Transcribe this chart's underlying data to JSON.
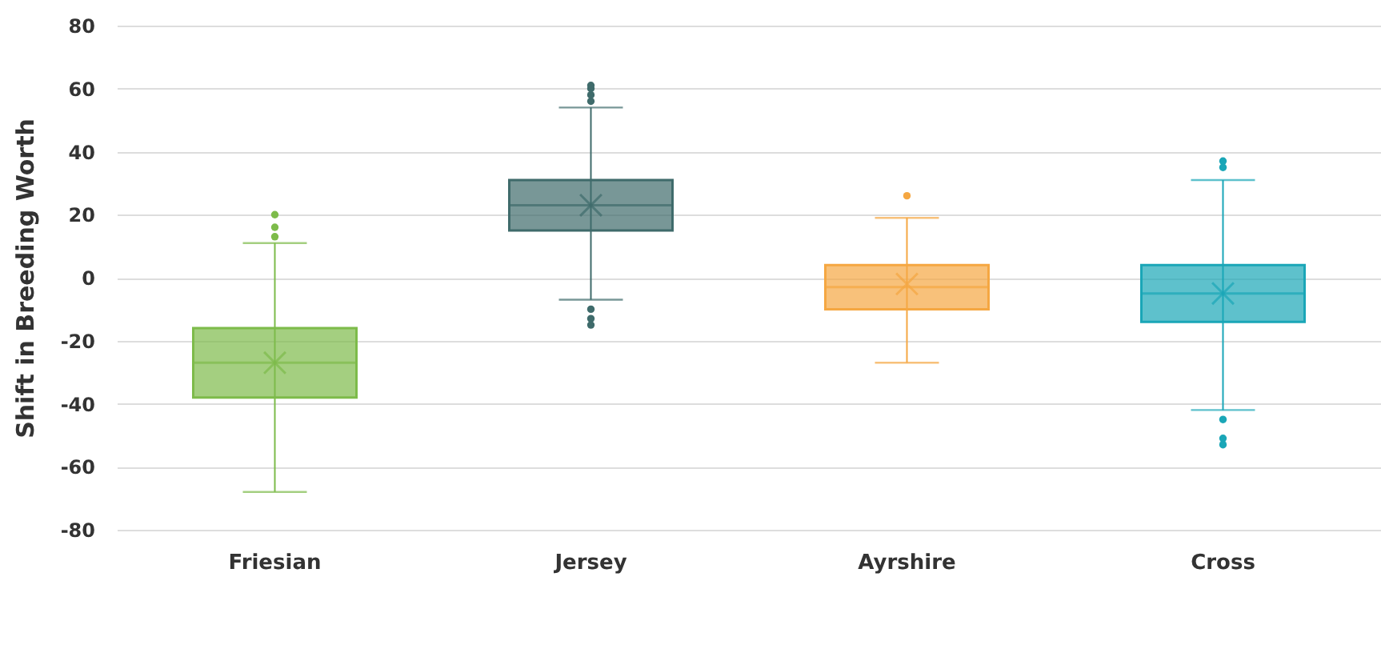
{
  "chart_data": {
    "type": "box",
    "ylabel": "Shift in Breeding Worth",
    "categories": [
      "Friesian",
      "Jersey",
      "Ayrshire",
      "Cross"
    ],
    "colors": [
      "#7dbb4a",
      "#3f6b6b",
      "#f5a742",
      "#1aa6b7"
    ],
    "boxes": [
      {
        "low": -68,
        "q1": -38,
        "median": -27,
        "q3": -16,
        "high": 11,
        "mean": -27,
        "outliers": [
          13,
          16,
          20
        ]
      },
      {
        "low": -7,
        "q1": 15,
        "median": 23,
        "q3": 31,
        "high": 54,
        "mean": 23,
        "outliers": [
          56,
          58,
          60,
          61,
          -10,
          -13,
          -15
        ]
      },
      {
        "low": -27,
        "q1": -10,
        "median": -3,
        "q3": 4,
        "high": 19,
        "mean": -2,
        "outliers": [
          26
        ]
      },
      {
        "low": -42,
        "q1": -14,
        "median": -5,
        "q3": 4,
        "high": 31,
        "mean": -5,
        "outliers": [
          35,
          37,
          -45,
          -51,
          -53
        ]
      }
    ],
    "ylim": [
      -80,
      80
    ],
    "yticks": [
      -80,
      -60,
      -40,
      -20,
      0,
      20,
      40,
      60,
      80
    ],
    "grid": "y"
  }
}
